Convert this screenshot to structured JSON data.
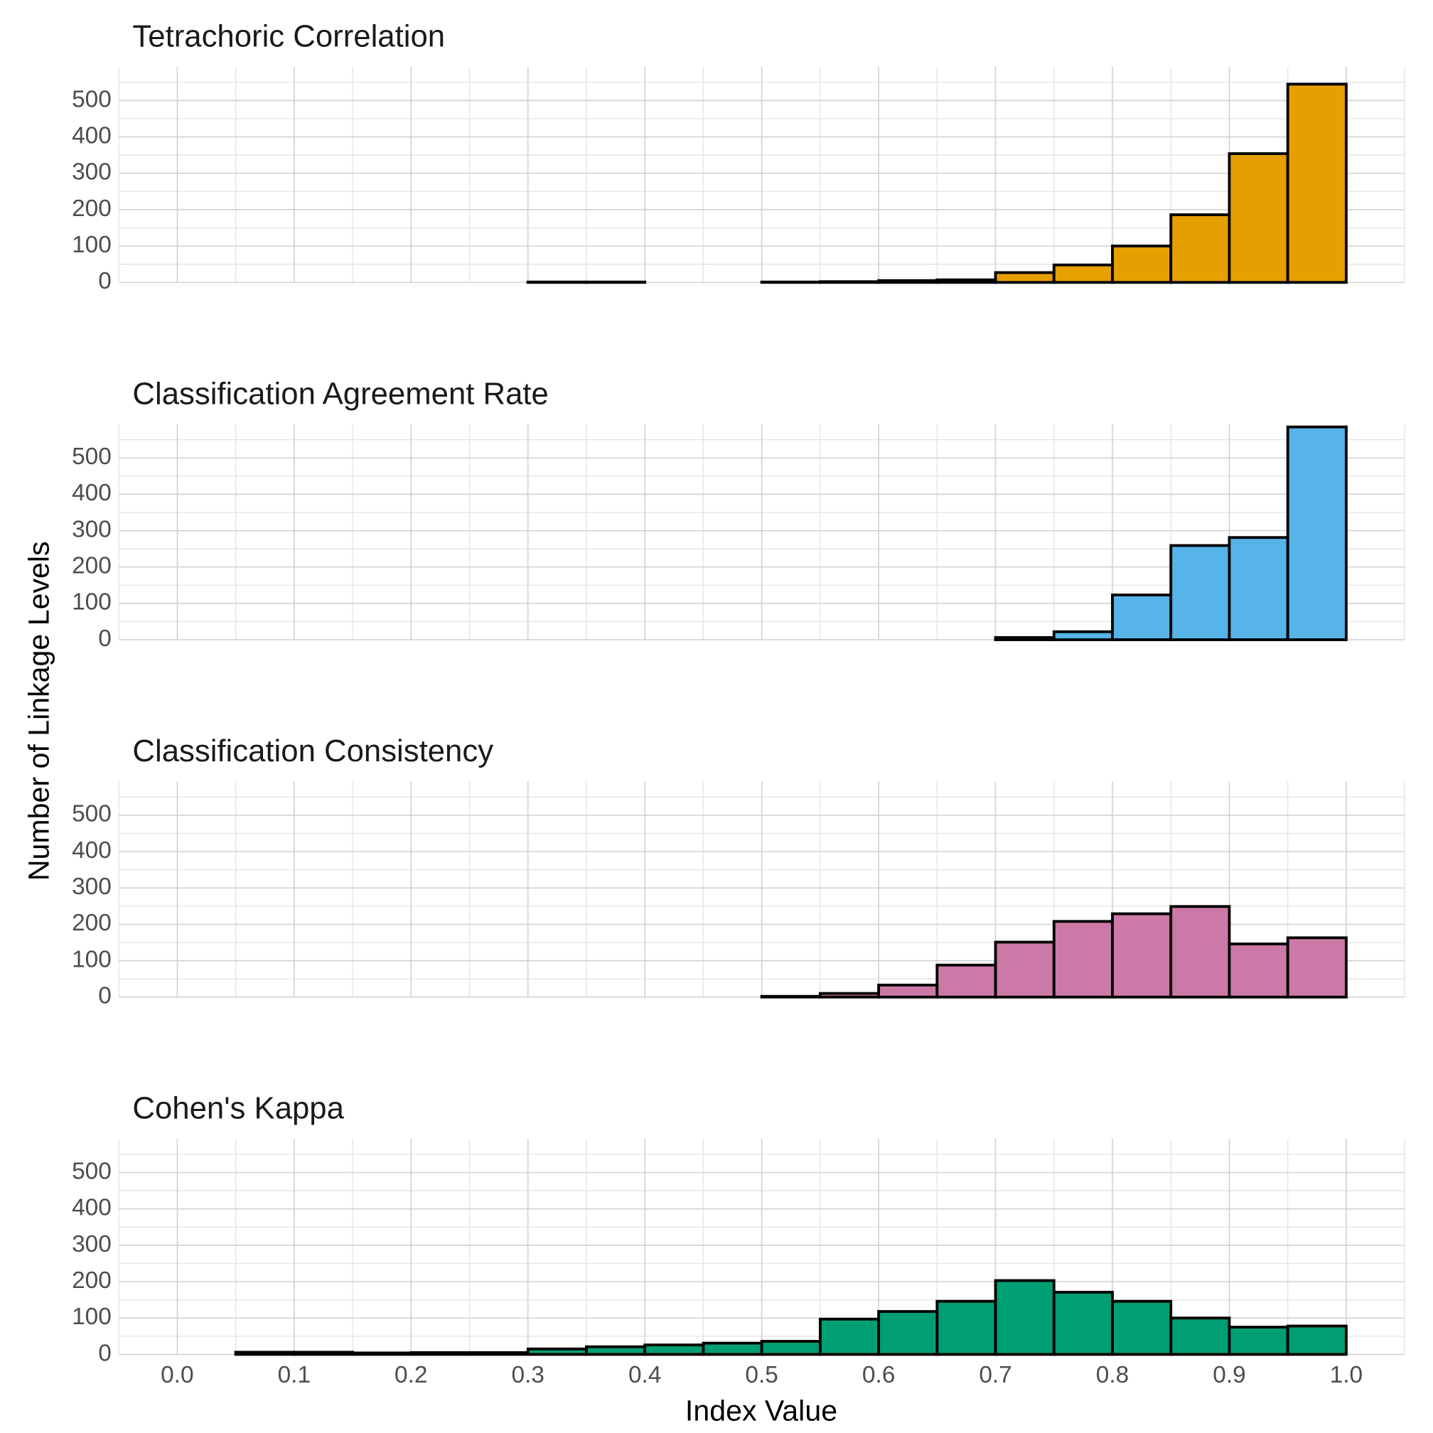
{
  "chart_data": {
    "type": "histogram",
    "xlabel": "Index Value",
    "ylabel": "Number of Linkage Levels",
    "xlim": [
      -0.05,
      1.05
    ],
    "xticks": [
      {
        "value": 0,
        "label": "0.0"
      },
      0.1,
      0.2,
      0.3,
      0.4,
      0.5,
      0.6,
      0.7,
      0.8,
      0.9,
      {
        "value": 1,
        "label": "1.0"
      }
    ],
    "ylim": [
      0,
      593
    ],
    "yticks": [
      0,
      100,
      200,
      300,
      400,
      500
    ],
    "grid": true,
    "panels": [
      {
        "title": "Tetrachoric Correlation",
        "color": "#e69f00",
        "bins": [
          0.3,
          0.35,
          0.4,
          0.45,
          0.5,
          0.55,
          0.6,
          0.65,
          0.7,
          0.75,
          0.8,
          0.85,
          0.9,
          0.95,
          1.0
        ],
        "values": [
          1,
          1,
          0,
          0,
          1,
          2,
          5,
          7,
          27,
          48,
          100,
          186,
          354,
          545
        ]
      },
      {
        "title": "Classification Agreement Rate",
        "color": "#56b4e9",
        "bins": [
          0.7,
          0.75,
          0.8,
          0.85,
          0.9,
          0.95,
          1.0
        ],
        "values": [
          6,
          22,
          123,
          259,
          281,
          585
        ]
      },
      {
        "title": "Classification Consistency",
        "color": "#cc79a7",
        "bins": [
          0.5,
          0.55,
          0.6,
          0.65,
          0.7,
          0.75,
          0.8,
          0.85,
          0.9,
          0.95,
          1.0
        ],
        "values": [
          2,
          10,
          33,
          88,
          151,
          208,
          229,
          249,
          146,
          163
        ]
      },
      {
        "title": "Cohen's Kappa",
        "color": "#009e73",
        "bins": [
          0.05,
          0.1,
          0.15,
          0.2,
          0.25,
          0.3,
          0.35,
          0.4,
          0.45,
          0.5,
          0.55,
          0.6,
          0.65,
          0.7,
          0.75,
          0.8,
          0.85,
          0.9,
          0.95,
          1.0
        ],
        "values": [
          6,
          6,
          4,
          5,
          5,
          15,
          21,
          26,
          31,
          36,
          97,
          118,
          146,
          203,
          171,
          146,
          100,
          75,
          78
        ]
      }
    ]
  }
}
